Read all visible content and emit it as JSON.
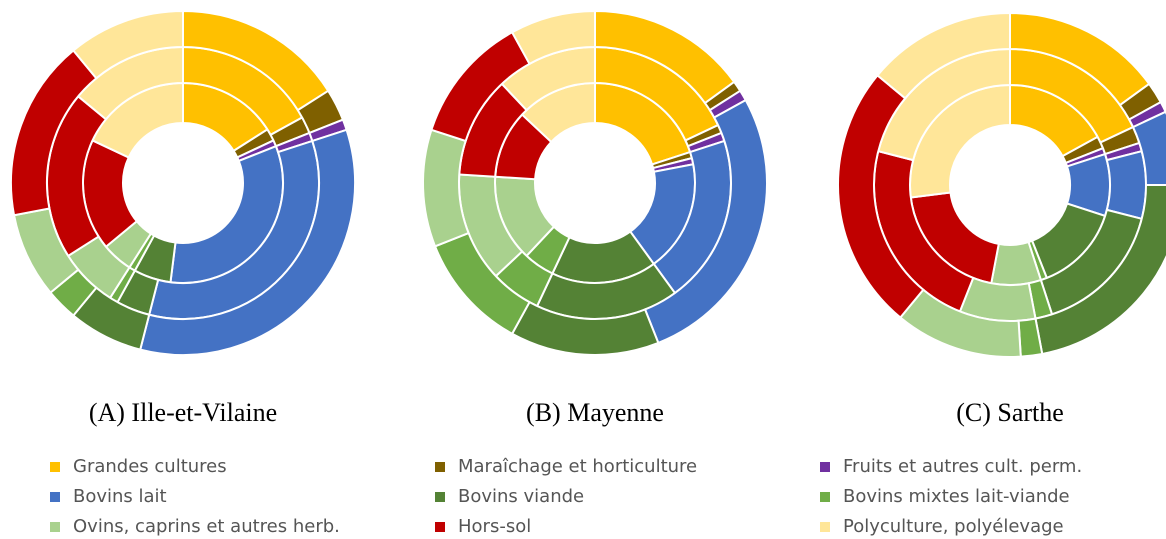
{
  "chart_data": [
    {
      "type": "donut",
      "title": "(A) Ille-et-Vilaine",
      "categories": [
        "Grandes cultures",
        "Maraîchage et horticulture",
        "Fruits et autres cult. perm.",
        "Bovins lait",
        "Bovins viande",
        "Bovins mixtes lait-viande",
        "Ovins, caprins et autres herb.",
        "Hors-sol",
        "Polyculture, polyélevage"
      ],
      "colors": [
        "#ffc000",
        "#7f6000",
        "#7030a0",
        "#4472c4",
        "#548235",
        "#70ad47",
        "#a9d18e",
        "#c00000",
        "#ffe699"
      ],
      "series": [
        {
          "values": [
            16,
            2,
            1,
            33,
            6,
            1,
            5,
            18,
            18
          ]
        },
        {
          "values": [
            17,
            2,
            1,
            34,
            4,
            1,
            7,
            20,
            14
          ]
        },
        {
          "values": [
            16,
            3,
            1,
            34,
            7,
            3,
            8,
            17,
            11
          ]
        }
      ]
    },
    {
      "type": "donut",
      "title": "(B) Mayenne",
      "categories": [
        "Grandes cultures",
        "Maraîchage et horticulture",
        "Fruits et autres cult. perm.",
        "Bovins lait",
        "Bovins viande",
        "Bovins mixtes lait-viande",
        "Ovins, caprins et autres herb.",
        "Hors-sol",
        "Polyculture, polyélevage"
      ],
      "colors": [
        "#ffc000",
        "#7f6000",
        "#7030a0",
        "#4472c4",
        "#548235",
        "#70ad47",
        "#a9d18e",
        "#c00000",
        "#ffe699"
      ],
      "series": [
        {
          "values": [
            20,
            1,
            1,
            18,
            17,
            5,
            14,
            11,
            13
          ]
        },
        {
          "values": [
            18,
            1,
            1,
            20,
            17,
            6,
            13,
            12,
            12
          ]
        },
        {
          "values": [
            15,
            1,
            1,
            27,
            14,
            11,
            11,
            12,
            8
          ]
        }
      ]
    },
    {
      "type": "donut",
      "title": "(C) Sarthe",
      "categories": [
        "Grandes cultures",
        "Maraîchage et horticulture",
        "Fruits et autres cult. perm.",
        "Bovins lait",
        "Bovins viande",
        "Bovins mixtes lait-viande",
        "Ovins, caprins et autres herb.",
        "Hors-sol",
        "Polyculture, polyélevage"
      ],
      "colors": [
        "#ffc000",
        "#7f6000",
        "#7030a0",
        "#4472c4",
        "#548235",
        "#70ad47",
        "#a9d18e",
        "#c00000",
        "#ffe699"
      ],
      "series": [
        {
          "values": [
            17,
            2,
            1,
            10,
            14,
            1,
            8,
            20,
            27
          ]
        },
        {
          "values": [
            18,
            2,
            1,
            8,
            16,
            2,
            9,
            23,
            21
          ]
        },
        {
          "values": [
            15,
            2,
            1,
            7,
            22,
            2,
            12,
            25,
            14
          ]
        }
      ]
    }
  ]
}
